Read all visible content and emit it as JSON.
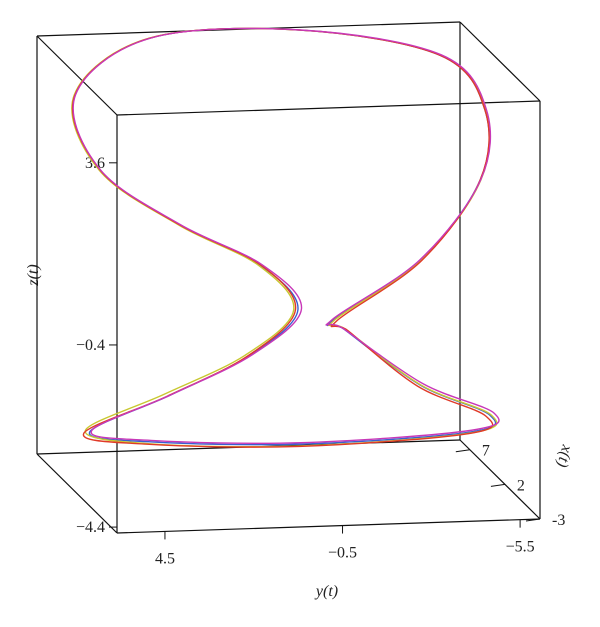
{
  "chart_data": {
    "type": "line3d",
    "xlabel": "x(t)",
    "ylabel": "y(t)",
    "zlabel": "z(t)",
    "xlim": [
      -3,
      8.4
    ],
    "ylim": [
      5.85,
      -6.06
    ],
    "zlim": [
      -4.53,
      4.65
    ],
    "xticks": [
      -3,
      2,
      7
    ],
    "yticks": [
      4.5,
      {
        "value": -0.5,
        "label": "−0.5"
      },
      {
        "value": -5.5,
        "label": "−5.5"
      }
    ],
    "zticks": [
      {
        "value": -4.4,
        "label": "−4.4"
      },
      {
        "value": -0.4,
        "label": "−0.4"
      },
      3.6
    ],
    "series": [
      {
        "color": "#3a5fd0",
        "x": [
          2.7,
          2.7,
          2.7,
          3.84,
          3.84,
          7.83,
          7.26,
          4.98,
          2.7,
          2.7,
          2.7,
          2.7,
          1.56,
          0.42,
          0.99,
          -0.72,
          -1.29,
          -1.29,
          -0.15,
          0.99,
          2.13
        ],
        "y": [
          -1.36,
          -3.81,
          -5.5,
          -5.86,
          -4.6,
          -1.44,
          2.9,
          5.46,
          5.21,
          2.96,
          0.69,
          -0.37,
          1.2,
          3.68,
          5.83,
          4.47,
          0.36,
          -4.43,
          -5.21,
          -3.48,
          -1.58
        ],
        "z": [
          -0.91,
          0.34,
          2.06,
          3.42,
          4.65,
          4.68,
          4.7,
          3.86,
          2.56,
          1.29,
          0.35,
          -0.66,
          -1.44,
          -2.08,
          -2.92,
          -2.91,
          -2.98,
          -2.84,
          -2.66,
          -2.13,
          -1.04
        ]
      },
      {
        "color": "#c8c830",
        "x": [
          2.7,
          2.7,
          2.7,
          3.84,
          3.84,
          7.83,
          7.26,
          4.98,
          2.7,
          2.7,
          2.7,
          2.7,
          1.56,
          0.42,
          0.99,
          -0.72,
          -1.29,
          -1.29,
          -0.15,
          0.99,
          2.13
        ],
        "y": [
          -1.4,
          -3.84,
          -5.52,
          -5.88,
          -4.62,
          -1.44,
          2.92,
          5.48,
          5.23,
          2.98,
          0.74,
          -0.25,
          1.35,
          3.83,
          5.95,
          4.52,
          0.36,
          -4.45,
          -5.25,
          -3.5,
          -1.62
        ],
        "z": [
          -0.91,
          0.34,
          2.06,
          3.42,
          4.65,
          4.68,
          4.7,
          3.86,
          2.56,
          1.29,
          0.35,
          -0.66,
          -1.44,
          -2.05,
          -2.88,
          -2.95,
          -3.02,
          -2.86,
          -2.66,
          -2.13,
          -1.04
        ]
      },
      {
        "color": "#e03a28",
        "x": [
          2.7,
          2.7,
          2.7,
          3.84,
          3.84,
          7.83,
          7.26,
          4.98,
          2.7,
          2.7,
          2.7,
          2.7,
          1.56,
          0.42,
          0.99,
          -0.72,
          -1.29,
          -1.29,
          -0.15,
          0.99,
          2.13
        ],
        "y": [
          -1.46,
          -3.86,
          -5.5,
          -5.86,
          -4.6,
          -1.44,
          2.9,
          5.46,
          5.2,
          2.95,
          0.67,
          -0.3,
          1.28,
          3.76,
          6.0,
          4.55,
          0.38,
          -4.4,
          -5.1,
          -3.4,
          -1.68
        ],
        "z": [
          -0.93,
          0.34,
          2.06,
          3.42,
          4.65,
          4.68,
          4.7,
          3.86,
          2.56,
          1.29,
          0.35,
          -0.66,
          -1.46,
          -2.1,
          -2.95,
          -2.96,
          -3.03,
          -2.87,
          -2.68,
          -2.15,
          -1.07
        ]
      },
      {
        "color": "#c838b8",
        "x": [
          2.7,
          2.7,
          2.7,
          3.84,
          3.84,
          7.83,
          7.26,
          4.98,
          2.7,
          2.7,
          2.7,
          2.7,
          1.56,
          0.42,
          0.99,
          -0.72,
          -1.29,
          -1.29,
          -0.15,
          0.99,
          2.13
        ],
        "y": [
          -1.33,
          -3.8,
          -5.52,
          -5.9,
          -4.63,
          -1.46,
          2.88,
          5.44,
          5.2,
          2.94,
          0.64,
          -0.47,
          1.12,
          3.62,
          5.78,
          4.44,
          0.34,
          -4.47,
          -5.33,
          -3.55,
          -1.55
        ],
        "z": [
          -0.9,
          0.35,
          2.07,
          3.43,
          4.66,
          4.68,
          4.7,
          3.87,
          2.57,
          1.3,
          0.36,
          -0.64,
          -1.42,
          -2.06,
          -2.9,
          -2.88,
          -2.95,
          -2.8,
          -2.62,
          -2.1,
          -1.02
        ]
      }
    ]
  }
}
